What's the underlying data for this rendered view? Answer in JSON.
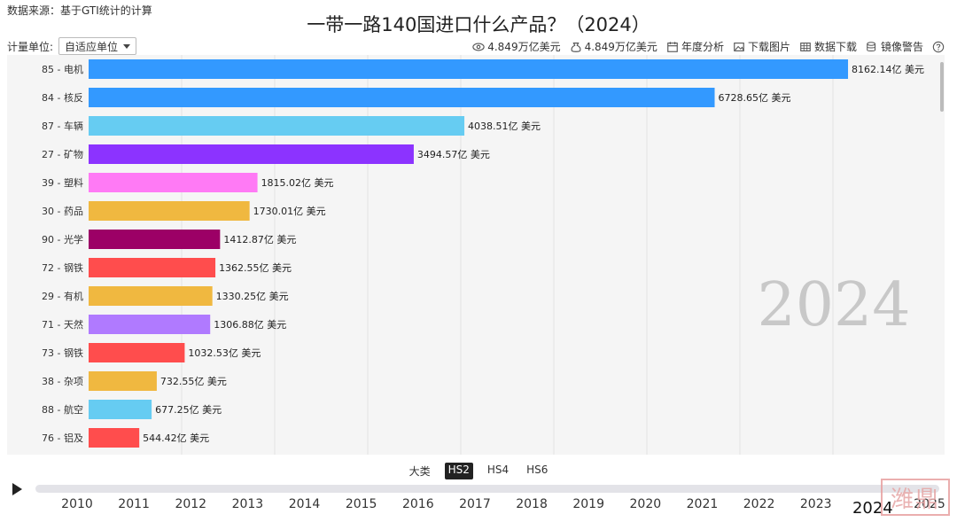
{
  "header": {
    "source": "数据来源：基于GTI统计的计算",
    "title": "一带一路140国进口什么产品？（2024）"
  },
  "unit": {
    "label": "计量单位:",
    "selected": "自适应单位"
  },
  "toolbar": {
    "stat_a": "4.849万亿美元",
    "stat_b": "4.849万亿美元",
    "annual": "年度分析",
    "download_image": "下载图片",
    "download_data": "数据下载",
    "mirror": "镜像警告"
  },
  "chart_data": {
    "type": "bar",
    "orientation": "horizontal",
    "year_label": "2024",
    "value_suffix": "亿 美元",
    "xlim": [
      0,
      9000
    ],
    "grid": true,
    "categories": [
      "85 - 电机",
      "84 - 核反",
      "87 - 车辆",
      "27 - 矿物",
      "39 - 塑料",
      "30 - 药品",
      "90 - 光学",
      "72 - 钢铁",
      "29 - 有机",
      "71 - 天然",
      "73 - 钢铁",
      "38 - 杂项",
      "88 - 航空",
      "76 - 铝及"
    ],
    "values": [
      8162.14,
      6728.65,
      4038.51,
      3494.57,
      1815.02,
      1730.01,
      1412.87,
      1362.55,
      1330.25,
      1306.88,
      1032.53,
      732.55,
      677.25,
      544.42
    ],
    "colors": [
      "#3399ff",
      "#3399ff",
      "#66ccf2",
      "#8c33ff",
      "#ff7af5",
      "#f0b840",
      "#9c0066",
      "#ff4d4d",
      "#f0b840",
      "#b07aff",
      "#ff4d4d",
      "#f0b840",
      "#66ccf2",
      "#ff4d4d"
    ]
  },
  "levels": [
    "大类",
    "HS2",
    "HS4",
    "HS6"
  ],
  "active_level": "HS2",
  "timeline": {
    "years": [
      "2010",
      "2011",
      "2012",
      "2013",
      "2014",
      "2015",
      "2016",
      "2017",
      "2018",
      "2019",
      "2020",
      "2021",
      "2022",
      "2023",
      "2024",
      "2025"
    ],
    "current": "2024"
  },
  "watermark": {
    "text": "潍鼎"
  }
}
